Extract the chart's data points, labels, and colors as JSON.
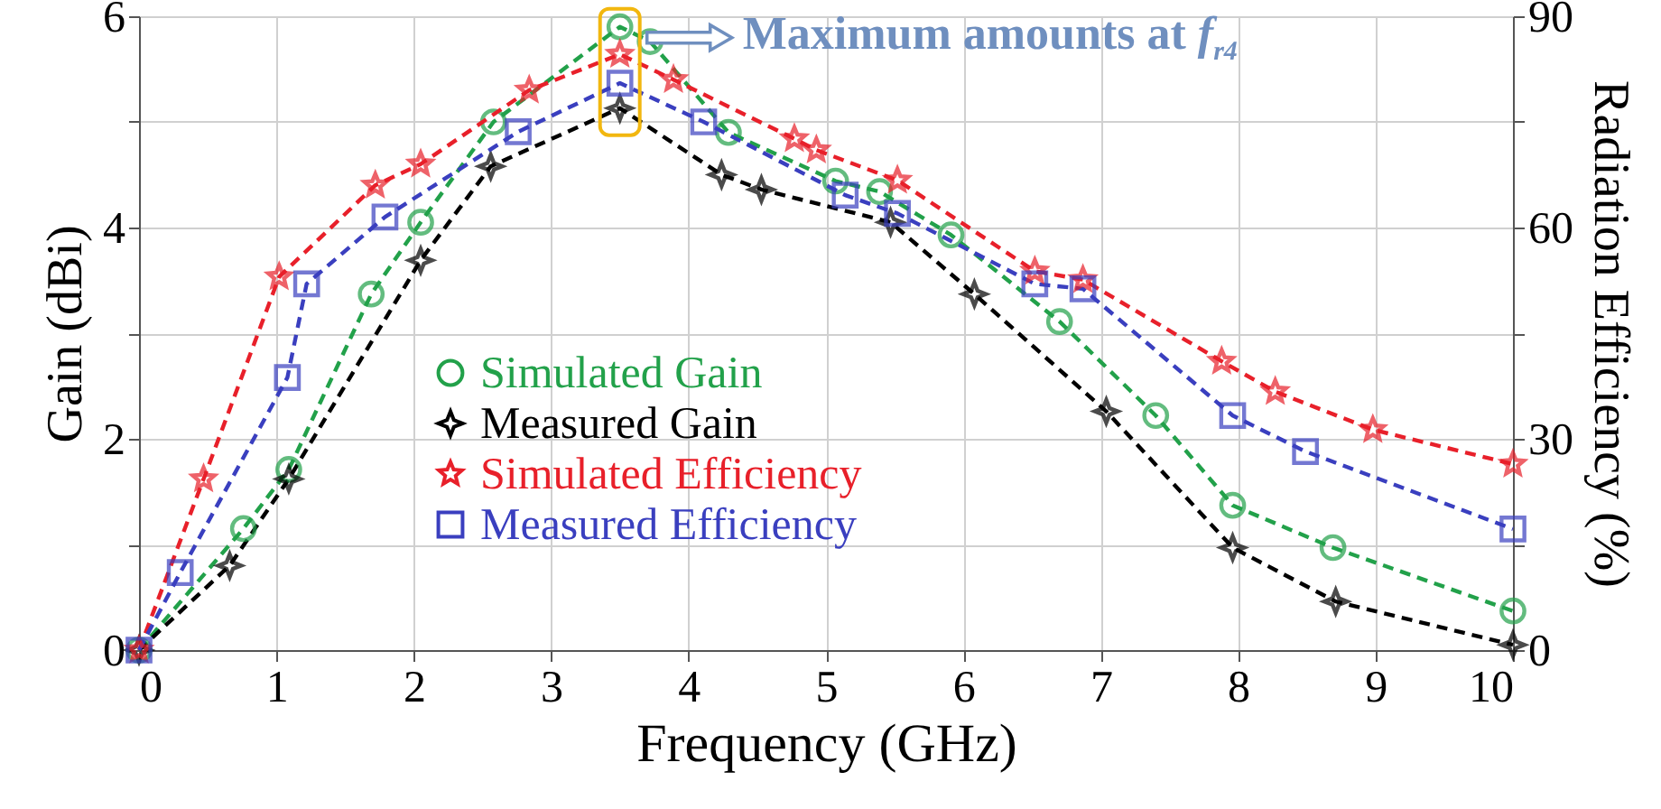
{
  "chart_data": {
    "type": "line",
    "xlabel": "Frequency (GHz)",
    "ylabel": "Gain (dBi)",
    "y2label": "Radiation Efficiency (%)",
    "xlim": [
      0,
      10
    ],
    "xticks": [
      0,
      1,
      2,
      3,
      4,
      5,
      6,
      7,
      8,
      9,
      10
    ],
    "ylim": [
      0,
      6
    ],
    "yticks": [
      0,
      {
        "value": 1,
        "label": null
      },
      2,
      {
        "value": 3,
        "label": null
      },
      4,
      {
        "value": 5,
        "label": null
      },
      6
    ],
    "y2lim": [
      0,
      90
    ],
    "y2ticks": [
      0,
      {
        "value": 15,
        "label": null
      },
      30,
      {
        "value": 45,
        "label": null
      },
      60,
      {
        "value": 75,
        "label": null
      },
      90
    ],
    "grid": true,
    "legend": "bottom",
    "line_style": "dashed",
    "annotations": [
      {
        "text": "Maximum amounts at f$_{r4}$",
        "x": 3.5,
        "y": 5.9
      }
    ],
    "series": [
      {
        "name": "Simulated Gain",
        "color": "#22a14a",
        "marker": "circle",
        "x": [
          0,
          0.76,
          1.09,
          1.69,
          2.05,
          2.58,
          3.5,
          3.72,
          4.29,
          5.07,
          5.39,
          5.91,
          6.7,
          7.4,
          7.96,
          8.69,
          10
        ],
        "values": [
          0,
          1.15,
          1.71,
          3.37,
          4.05,
          5.0,
          5.9,
          5.76,
          4.9,
          4.44,
          4.34,
          3.93,
          3.11,
          2.22,
          1.37,
          0.97,
          0.37
        ]
      },
      {
        "name": "Measured Gain",
        "color": "#000000",
        "marker": "diamond",
        "x": [
          0,
          0.66,
          1.09,
          2.05,
          2.56,
          3.5,
          4.24,
          4.53,
          5.47,
          6.08,
          7.04,
          7.96,
          8.71,
          10
        ],
        "values": [
          0,
          0.8,
          1.62,
          3.69,
          4.58,
          5.13,
          4.5,
          4.36,
          4.05,
          3.37,
          2.26,
          0.97,
          0.46,
          0.05
        ]
      },
      {
        "name": "Simulated Efficiency",
        "color": "#e8202a",
        "marker": "star",
        "axis": "y2",
        "x": [
          0,
          0.47,
          1.02,
          1.72,
          2.05,
          2.84,
          3.5,
          3.89,
          4.77,
          4.93,
          5.52,
          6.52,
          6.87,
          7.88,
          8.27,
          8.98,
          10
        ],
        "values": [
          0,
          24.3,
          53,
          66,
          69,
          79.5,
          84.6,
          81,
          72.6,
          71,
          66.7,
          53.8,
          52.6,
          41,
          36.7,
          31.3,
          26.4
        ]
      },
      {
        "name": "Measured Efficiency",
        "color": "#3a3fbf",
        "marker": "square",
        "axis": "y2",
        "x": [
          0,
          0.3,
          1.08,
          1.22,
          1.79,
          2.76,
          3.5,
          4.11,
          5.14,
          5.52,
          6.52,
          6.87,
          7.96,
          8.49,
          10
        ],
        "values": [
          0,
          11,
          38.7,
          52,
          61.5,
          73.6,
          80.5,
          75,
          64.6,
          62,
          52,
          51.3,
          33.3,
          28.2,
          17.2
        ]
      }
    ]
  }
}
